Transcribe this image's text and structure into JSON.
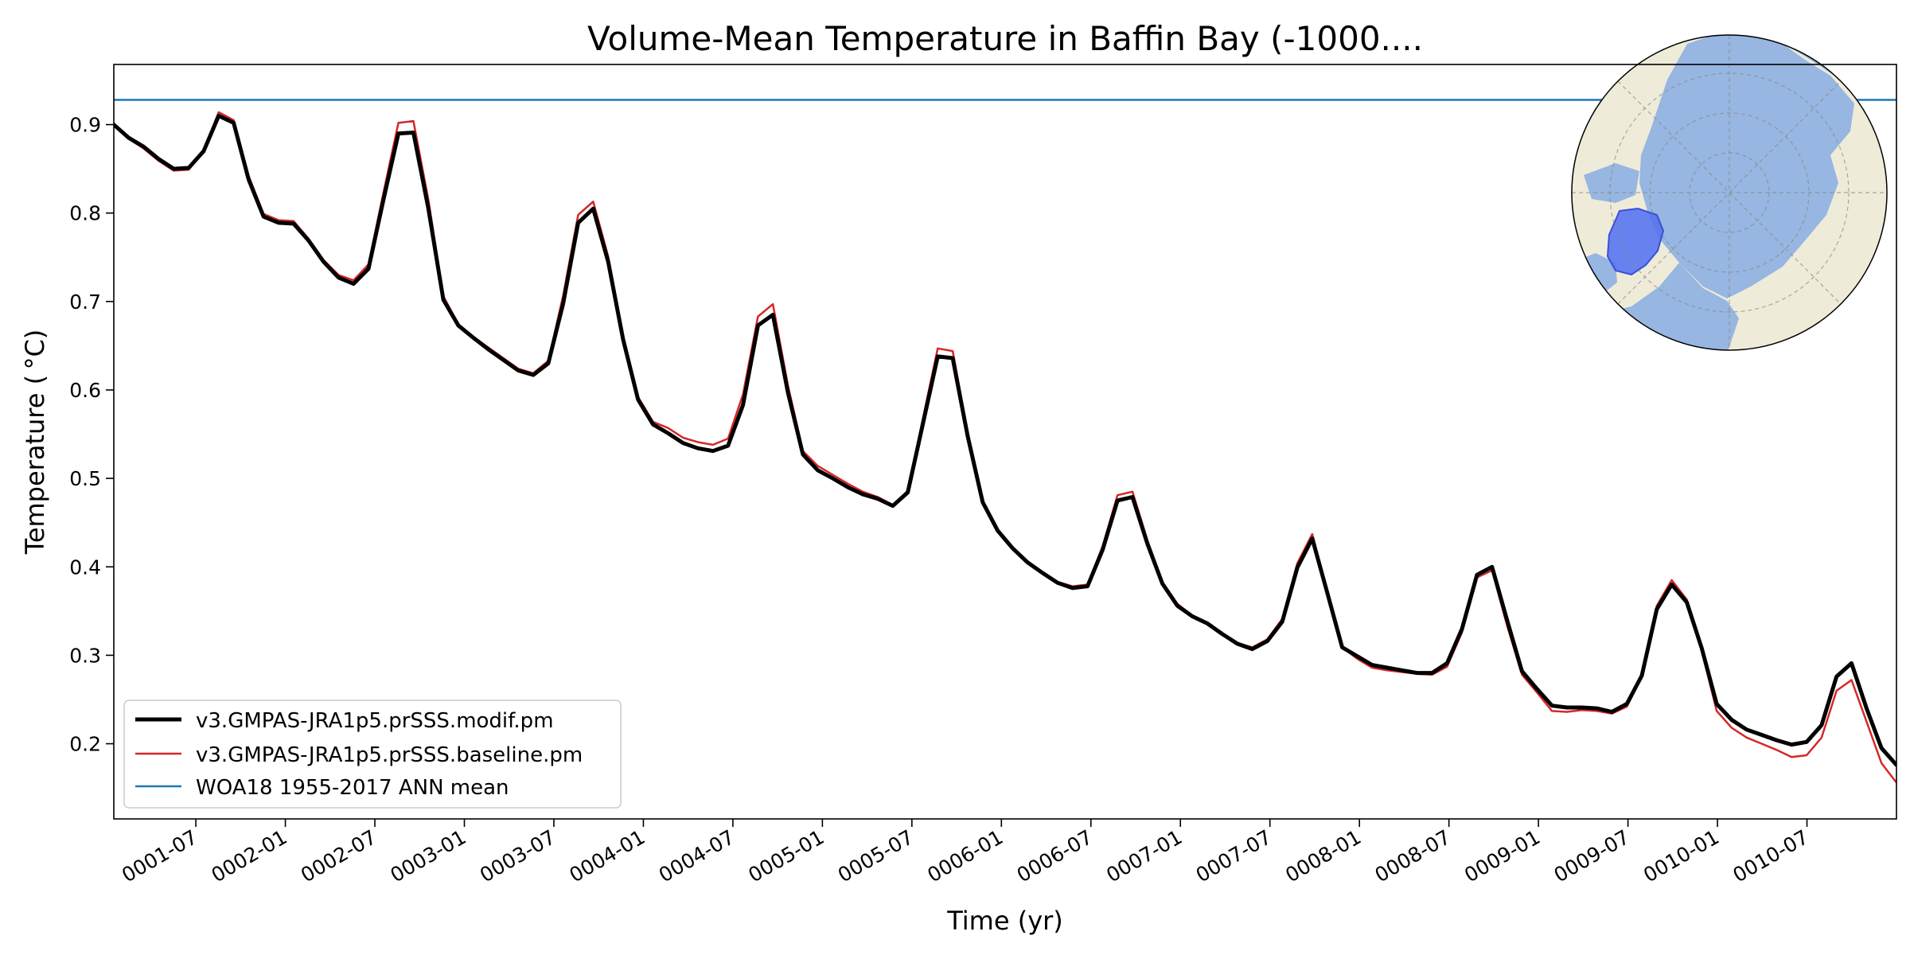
{
  "chart_data": {
    "type": "line",
    "title": "Volume-Mean Temperature in Baffin Bay (-1000....",
    "xlabel": "Time (yr)",
    "ylabel": "Temperature ( °C)",
    "xlim": [
      0.0417,
      10.0
    ],
    "ylim": [
      0.115,
      0.968
    ],
    "yticks": [
      0.2,
      0.3,
      0.4,
      0.5,
      0.6,
      0.7,
      0.8,
      0.9
    ],
    "ytick_labels": [
      "0.2",
      "0.3",
      "0.4",
      "0.5",
      "0.6",
      "0.7",
      "0.8",
      "0.9"
    ],
    "xticks": [
      0.5,
      1.0,
      1.5,
      2.0,
      2.5,
      3.0,
      3.5,
      4.0,
      4.5,
      5.0,
      5.5,
      6.0,
      6.5,
      7.0,
      7.5,
      8.0,
      8.5,
      9.0,
      9.5
    ],
    "xtick_labels": [
      "0001-07",
      "0002-01",
      "0002-07",
      "0003-01",
      "0003-07",
      "0004-01",
      "0004-07",
      "0005-01",
      "0005-07",
      "0006-01",
      "0006-07",
      "0007-01",
      "0007-07",
      "0008-01",
      "0008-07",
      "0009-01",
      "0009-07",
      "0010-01",
      "0010-07"
    ],
    "legend_position": "lower-left",
    "series": [
      {
        "name": "v3.GMPAS-JRA1p5.prSSS.modif.pm",
        "color": "#000000",
        "width": 5,
        "values": [
          0.9,
          0.885,
          0.875,
          0.861,
          0.85,
          0.851,
          0.87,
          0.91,
          0.902,
          0.838,
          0.796,
          0.789,
          0.788,
          0.769,
          0.745,
          0.727,
          0.72,
          0.737,
          0.815,
          0.89,
          0.891,
          0.805,
          0.702,
          0.673,
          0.659,
          0.646,
          0.634,
          0.622,
          0.617,
          0.63,
          0.698,
          0.789,
          0.805,
          0.745,
          0.657,
          0.589,
          0.561,
          0.551,
          0.54,
          0.534,
          0.531,
          0.537,
          0.583,
          0.673,
          0.685,
          0.597,
          0.527,
          0.509,
          0.5,
          0.49,
          0.482,
          0.477,
          0.469,
          0.484,
          0.561,
          0.638,
          0.636,
          0.548,
          0.473,
          0.441,
          0.421,
          0.405,
          0.393,
          0.382,
          0.376,
          0.378,
          0.419,
          0.475,
          0.479,
          0.426,
          0.381,
          0.356,
          0.344,
          0.336,
          0.324,
          0.313,
          0.307,
          0.316,
          0.338,
          0.399,
          0.432,
          0.371,
          0.309,
          0.299,
          0.289,
          0.286,
          0.283,
          0.28,
          0.28,
          0.291,
          0.33,
          0.391,
          0.4,
          0.34,
          0.282,
          0.262,
          0.243,
          0.241,
          0.241,
          0.24,
          0.236,
          0.245,
          0.277,
          0.352,
          0.38,
          0.36,
          0.308,
          0.245,
          0.227,
          0.216,
          0.21,
          0.204,
          0.199,
          0.202,
          0.221,
          0.276,
          0.291,
          0.24,
          0.195,
          0.176
        ]
      },
      {
        "name": "v3.GMPAS-JRA1p5.prSSS.baseline.pm",
        "color": "#d62728",
        "width": 2.5,
        "values": [
          0.9,
          0.884,
          0.873,
          0.859,
          0.848,
          0.849,
          0.871,
          0.914,
          0.905,
          0.842,
          0.799,
          0.792,
          0.791,
          0.771,
          0.747,
          0.73,
          0.724,
          0.742,
          0.823,
          0.902,
          0.904,
          0.815,
          0.706,
          0.674,
          0.66,
          0.648,
          0.636,
          0.624,
          0.619,
          0.633,
          0.707,
          0.798,
          0.813,
          0.751,
          0.661,
          0.592,
          0.564,
          0.557,
          0.546,
          0.541,
          0.538,
          0.545,
          0.595,
          0.683,
          0.697,
          0.605,
          0.531,
          0.514,
          0.504,
          0.494,
          0.485,
          0.479,
          0.47,
          0.486,
          0.567,
          0.647,
          0.644,
          0.552,
          0.475,
          0.441,
          0.422,
          0.404,
          0.393,
          0.383,
          0.378,
          0.38,
          0.423,
          0.481,
          0.485,
          0.43,
          0.383,
          0.358,
          0.345,
          0.337,
          0.325,
          0.314,
          0.309,
          0.318,
          0.341,
          0.404,
          0.437,
          0.373,
          0.309,
          0.296,
          0.286,
          0.283,
          0.281,
          0.279,
          0.278,
          0.287,
          0.326,
          0.388,
          0.396,
          0.334,
          0.278,
          0.258,
          0.237,
          0.236,
          0.238,
          0.237,
          0.234,
          0.242,
          0.276,
          0.356,
          0.385,
          0.363,
          0.305,
          0.237,
          0.218,
          0.207,
          0.2,
          0.193,
          0.185,
          0.187,
          0.207,
          0.26,
          0.272,
          0.225,
          0.178,
          0.156
        ]
      },
      {
        "name": "WOA18 1955-2017 ANN mean",
        "color": "#1f77b4",
        "width": 2.5,
        "constant": 0.928
      }
    ]
  }
}
